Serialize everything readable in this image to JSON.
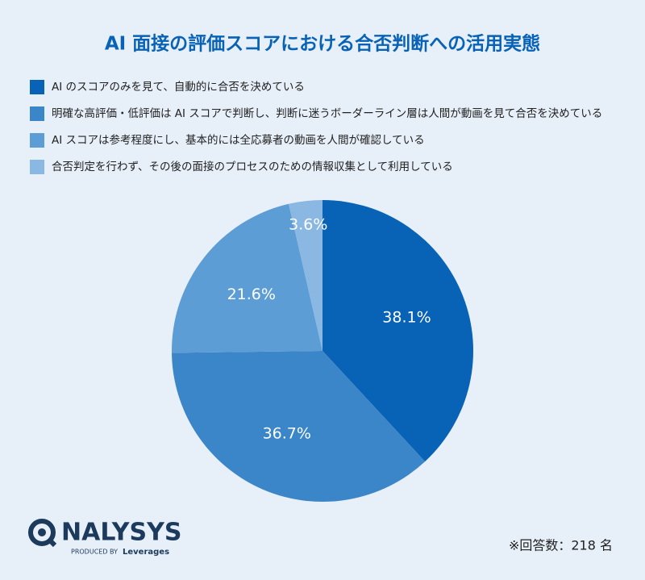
{
  "chart_data": {
    "type": "pie",
    "title": "AI 面接の評価スコアにおける合否判断への活用実態",
    "categories": [
      "AI のスコアのみを見て、自動的に合否を決めている",
      "明確な高評価・低評価は AI スコアで判断し、判断に迷うボーダーライン層は人間が動画を見て合否を決めている",
      "AI スコアは参考程度にし、基本的には全応募者の動画を人間が確認している",
      "合否判定を行わず、その後の面接のプロセスのための情報収集として利用している"
    ],
    "values": [
      38.1,
      36.7,
      21.6,
      3.6
    ],
    "value_labels": [
      "38.1%",
      "36.7%",
      "21.6%",
      "3.6%"
    ],
    "colors": [
      "#0862b6",
      "#3a86c8",
      "#5c9dd6",
      "#8ab8e3"
    ],
    "legend": "top-left",
    "note": "※回答数：218 名"
  },
  "footer": {
    "brand": "NALYSYS",
    "produced_by": "PRODUCED BY",
    "company": "Leverages"
  }
}
